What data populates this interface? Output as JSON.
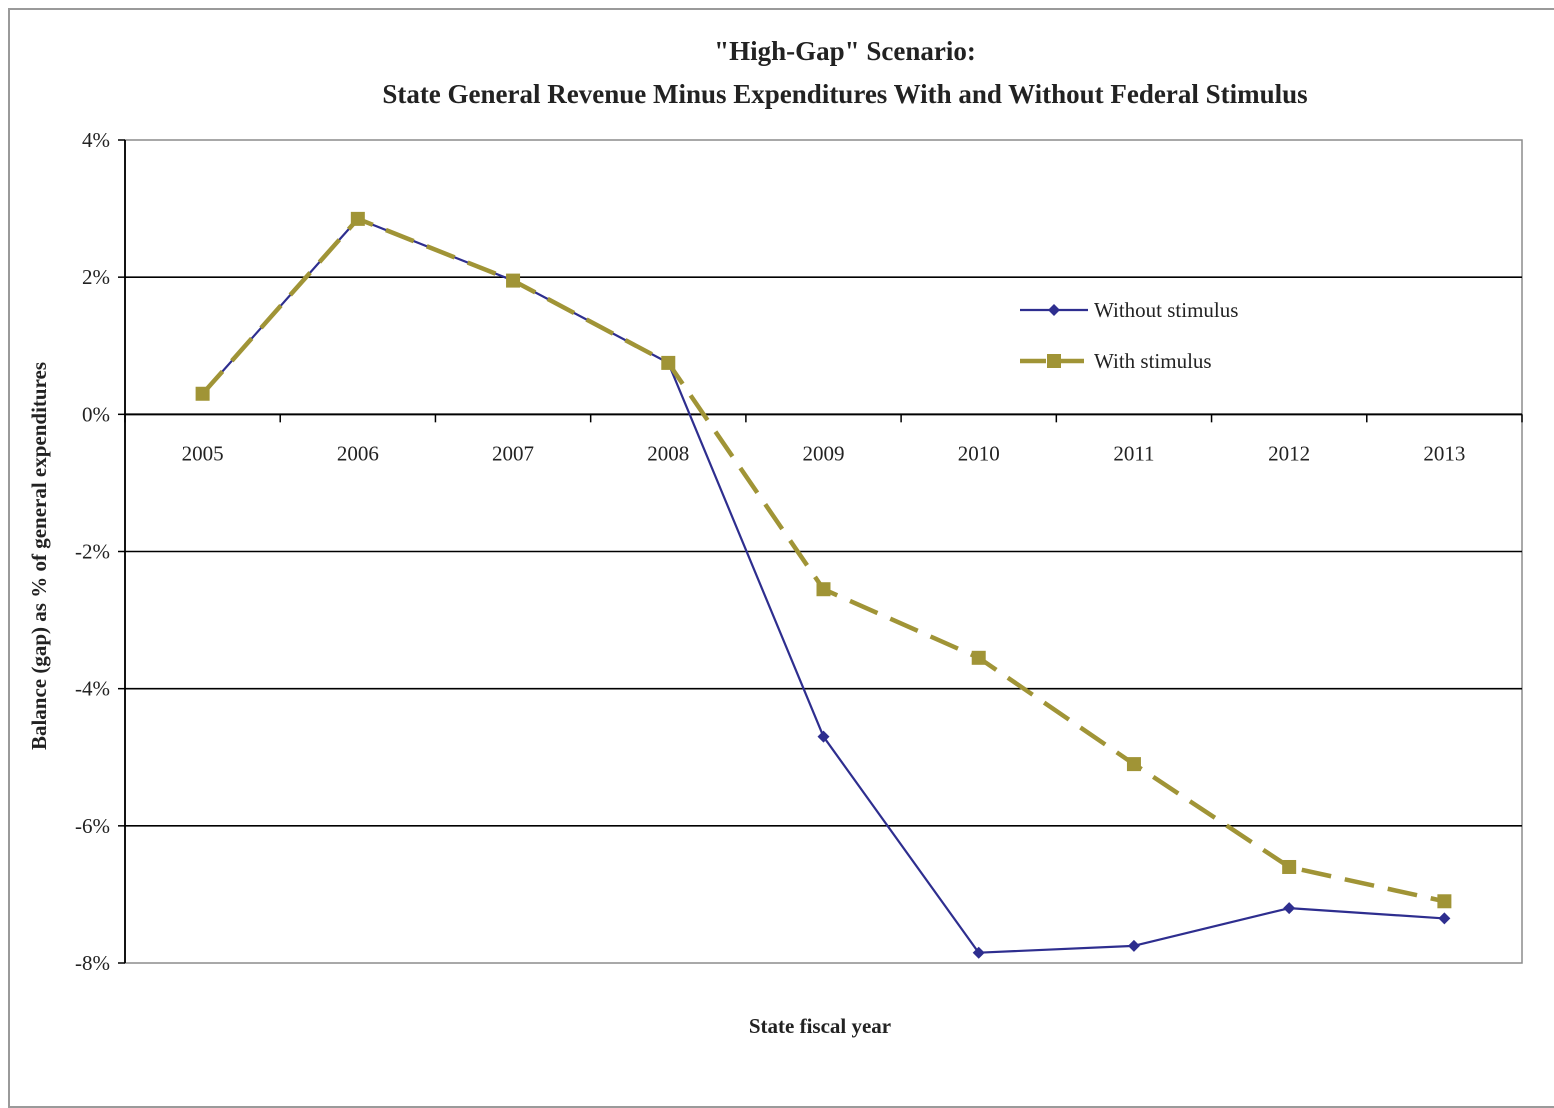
{
  "chart_data": {
    "type": "line",
    "title": "\"High-Gap\" Scenario:",
    "subtitle": "State General Revenue Minus Expenditures With and Without Federal Stimulus",
    "xlabel": "State fiscal year",
    "ylabel": "Balance (gap) as % of general expenditures",
    "categories": [
      "2005",
      "2006",
      "2007",
      "2008",
      "2009",
      "2010",
      "2011",
      "2012",
      "2013"
    ],
    "ylim": [
      -8,
      4
    ],
    "yticks": [
      4,
      2,
      0,
      -2,
      -4,
      -6,
      -8
    ],
    "ytick_labels": [
      "4%",
      "2%",
      "0%",
      "-2%",
      "-4%",
      "-6%",
      "-8%"
    ],
    "grid": true,
    "legend_position": "upper-right",
    "series": [
      {
        "name": "Without stimulus",
        "color": "#2e2e8f",
        "marker": "diamond",
        "dash": "solid",
        "values": [
          0.3,
          2.85,
          1.95,
          0.75,
          -4.7,
          -7.85,
          -7.75,
          -7.2,
          -7.35
        ]
      },
      {
        "name": "With stimulus",
        "color": "#a09436",
        "marker": "square",
        "dash": "dashed",
        "values": [
          0.3,
          2.85,
          1.95,
          0.75,
          -2.55,
          -3.55,
          -5.1,
          -6.6,
          -7.1
        ]
      }
    ]
  }
}
